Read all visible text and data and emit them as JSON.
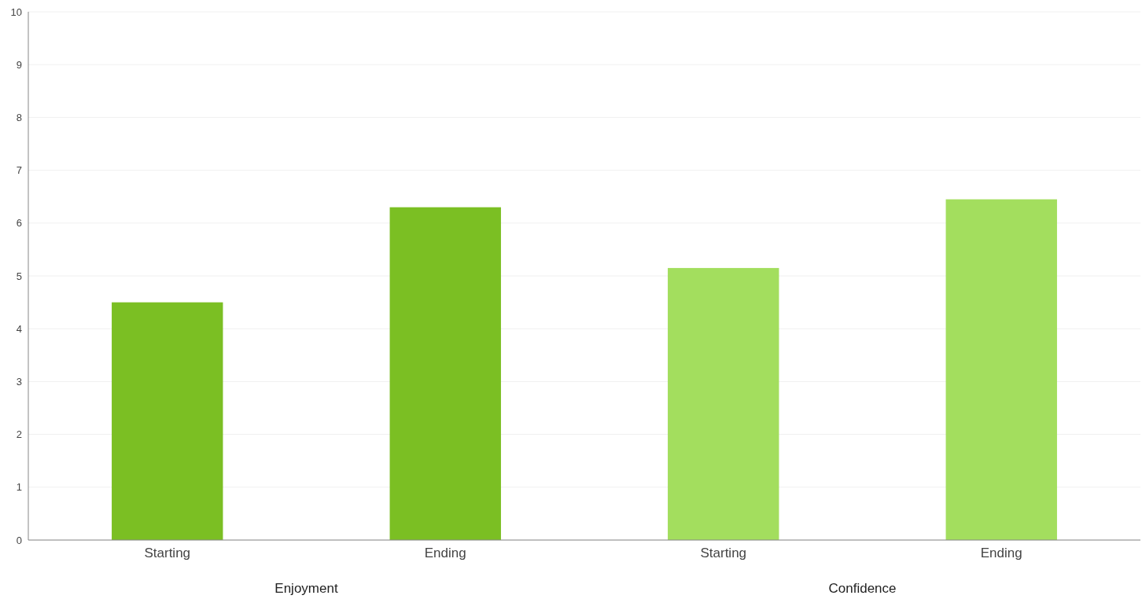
{
  "chart_data": {
    "type": "bar",
    "categories": [
      "Starting",
      "Ending",
      "Starting",
      "Ending"
    ],
    "values": [
      4.5,
      6.3,
      5.15,
      6.45
    ],
    "colors": [
      "#7bbf23",
      "#7bbf23",
      "#a3de5e",
      "#a3de5e"
    ],
    "annotations": [
      "Enjoyment",
      "Confidence"
    ],
    "ylim": [
      0,
      10
    ],
    "yticks": [
      0,
      1,
      2,
      3,
      4,
      5,
      6,
      7,
      8,
      9,
      10
    ],
    "grid": "y"
  }
}
